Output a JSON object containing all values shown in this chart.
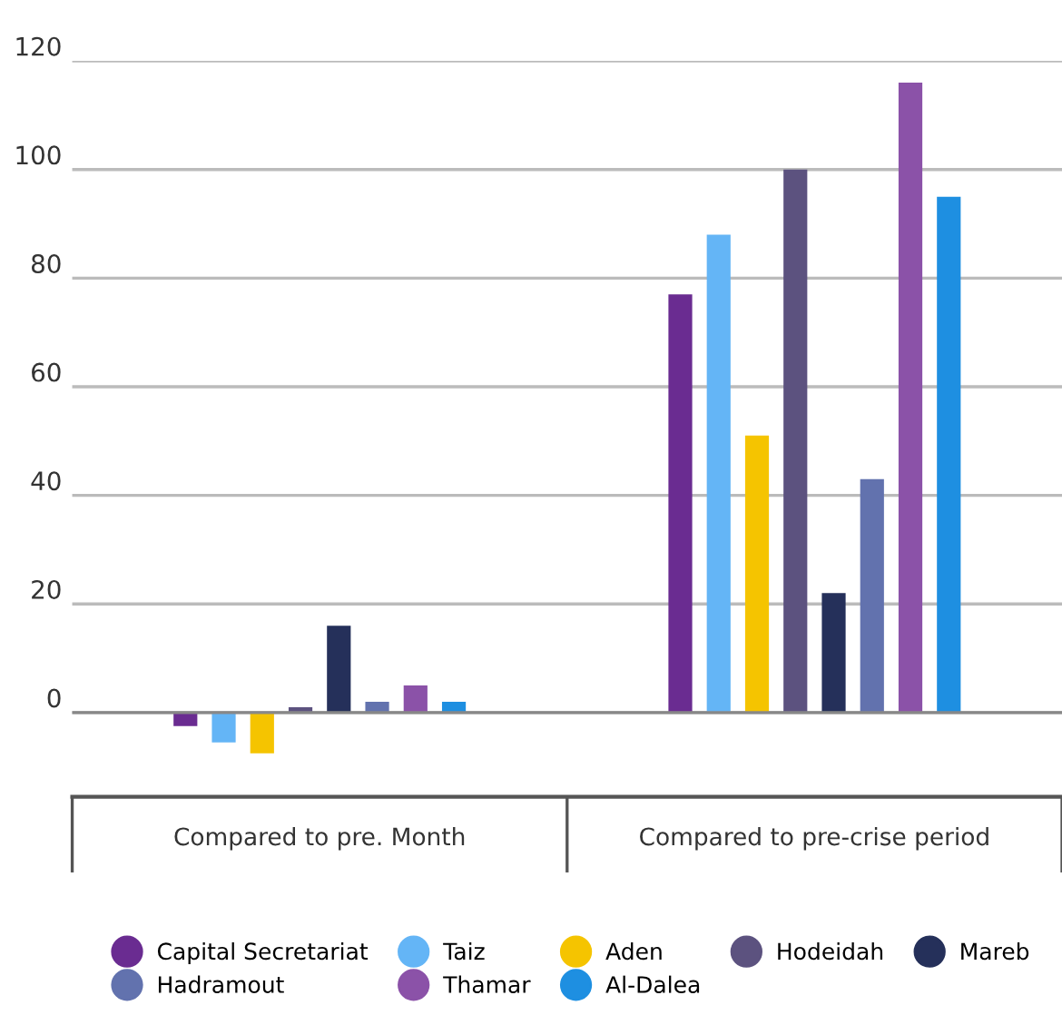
{
  "chart_data": {
    "type": "bar",
    "categories": [
      "Compared to pre. Month",
      "Compared to pre-crise period"
    ],
    "series": [
      {
        "name": "Capital Secretariat",
        "color": "#6a2c91",
        "values": [
          -2.5,
          77
        ]
      },
      {
        "name": "Taiz",
        "color": "#64b5f6",
        "values": [
          -5.5,
          88
        ]
      },
      {
        "name": "Aden",
        "color": "#f5c400",
        "values": [
          -7.5,
          51
        ]
      },
      {
        "name": "Hodeidah",
        "color": "#5c527f",
        "values": [
          1,
          100
        ]
      },
      {
        "name": "Mareb",
        "color": "#25305a",
        "values": [
          16,
          22
        ]
      },
      {
        "name": "Hadramout",
        "color": "#6272ae",
        "values": [
          2,
          43
        ]
      },
      {
        "name": "Thamar",
        "color": "#8b52a8",
        "values": [
          5,
          116
        ]
      },
      {
        "name": "Al-Dalea",
        "color": "#1e8fe1",
        "values": [
          2,
          95
        ]
      }
    ],
    "ylim": [
      -15.5,
      120
    ],
    "yticks": [
      0,
      20,
      40,
      60,
      80,
      100,
      120
    ],
    "grid": "y",
    "legend": "bottom"
  }
}
